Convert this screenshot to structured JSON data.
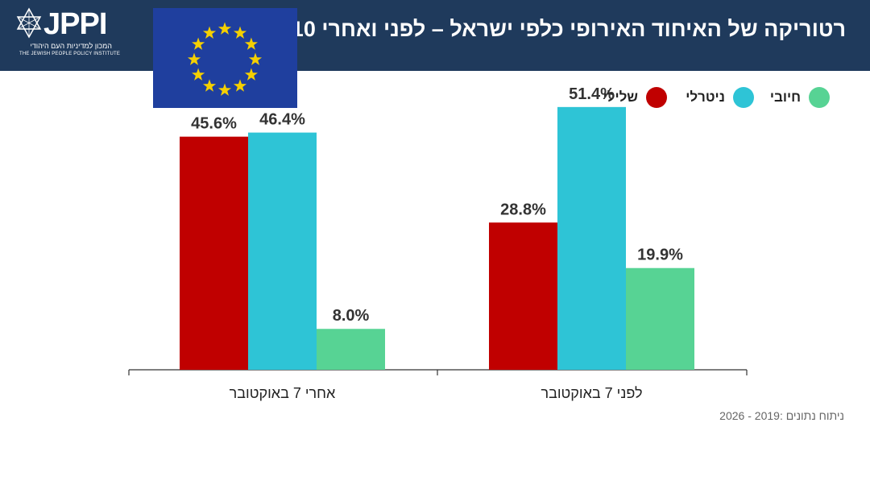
{
  "header": {
    "title": "רטוריקה של האיחוד האירופי כלפי ישראל – לפני ואחרי 7.10",
    "logo_text": "JPPI",
    "logo_subtitle_he": "המכון למדיניות העם היהודי",
    "logo_subtitle_en": "THE JEWISH PEOPLE POLICY INSTITUTE"
  },
  "flag": {
    "name": "eu-flag",
    "background": "#1f3f9e",
    "star_color": "#f5d000",
    "stars": 12
  },
  "legend": [
    {
      "label": "חיובי",
      "color": "#57d394"
    },
    {
      "label": "ניטרלי",
      "color": "#2ec4d6"
    },
    {
      "label": "שלילי",
      "color": "#c00000"
    }
  ],
  "chart_data": {
    "type": "bar",
    "categories": [
      "אחרי 7 באוקטובר",
      "לפני 7 באוקטובר"
    ],
    "series": [
      {
        "name": "שלילי",
        "color": "#c00000",
        "values": [
          45.6,
          28.8
        ]
      },
      {
        "name": "ניטרלי",
        "color": "#2ec4d6",
        "values": [
          46.4,
          51.4
        ]
      },
      {
        "name": "חיובי",
        "color": "#57d394",
        "values": [
          8.0,
          19.9
        ]
      }
    ],
    "value_labels": [
      [
        "45.6%",
        "46.4%",
        "8.0%"
      ],
      [
        "28.8%",
        "51.4%",
        "19.9%"
      ]
    ],
    "ylim": [
      0,
      55
    ],
    "title": "",
    "xlabel": "",
    "ylabel": ""
  },
  "source_note": "ניתוח נתונים :2019 - 2026"
}
